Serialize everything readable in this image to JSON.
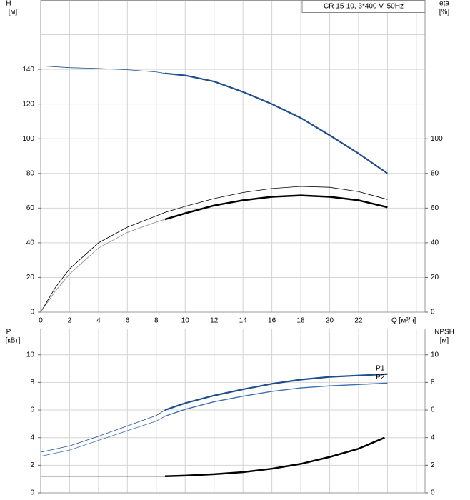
{
  "chart_data": [
    {
      "type": "line",
      "legend_box": "CR 15-10, 3*400 V, 50Hz",
      "y_label": [
        "H",
        "[м]"
      ],
      "y2_label": [
        "eta",
        "[%]"
      ],
      "x_label": "Q [м³/ч]",
      "xlim": [
        0,
        26.6
      ],
      "xticks": [
        0,
        2,
        4,
        6,
        8,
        10,
        12,
        14,
        16,
        18,
        20,
        22
      ],
      "xgrid_extra": [
        24,
        26
      ],
      "ylim": [
        0,
        180
      ],
      "yticks": [
        0,
        20,
        40,
        60,
        80,
        100,
        120,
        140
      ],
      "ygrid_extra": [
        160
      ],
      "y2lim": [
        0,
        180
      ],
      "y2ticks": [
        0,
        20,
        40,
        60,
        80,
        100
      ],
      "grid": true,
      "series": [
        {
          "color": "#1f4e8c",
          "line_width": 0.8,
          "x": [
            0,
            2,
            4,
            6,
            8,
            8.6
          ],
          "values": [
            142,
            141,
            140.5,
            139.8,
            138.5,
            137.7
          ]
        },
        {
          "color": "#1f4e8c",
          "line_width": 2.2,
          "x": [
            8.6,
            10,
            12,
            14,
            16,
            18,
            20,
            22,
            24
          ],
          "values": [
            137.7,
            136.5,
            133,
            127,
            120,
            112,
            102,
            91.5,
            80
          ]
        },
        {
          "color": "#000000",
          "line_width": 0.8,
          "axis": "y2",
          "x": [
            0,
            1,
            2,
            4,
            6,
            8,
            8.6,
            10,
            12,
            14,
            16,
            18,
            20,
            22,
            24
          ],
          "values": [
            0,
            14,
            25,
            40,
            49,
            55.5,
            57.5,
            61,
            65.5,
            69,
            71.3,
            72.5,
            72,
            69.5,
            65
          ]
        },
        {
          "color": "#888888",
          "line_width": 0.8,
          "axis": "y2",
          "x": [
            0,
            1,
            2,
            4,
            6,
            8,
            8.6
          ],
          "values": [
            0,
            12,
            22,
            37,
            46,
            52,
            53.5
          ]
        },
        {
          "color": "#000000",
          "line_width": 2.5,
          "axis": "y2",
          "x": [
            8.6,
            10,
            12,
            14,
            16,
            18,
            20,
            22,
            24
          ],
          "values": [
            53.5,
            57,
            61.5,
            64.5,
            66.5,
            67.3,
            66.5,
            64.5,
            60.5
          ]
        }
      ]
    },
    {
      "type": "line",
      "y_label": [
        "P",
        "[кВт]"
      ],
      "y2_label": [
        "NPSH",
        "[м]"
      ],
      "xlim": [
        0,
        26.6
      ],
      "xgrid": [
        0,
        2,
        4,
        6,
        8,
        10,
        12,
        14,
        16,
        18,
        20,
        22,
        24,
        26
      ],
      "ylim": [
        0,
        11.9
      ],
      "yticks": [
        0,
        2,
        4,
        6,
        8,
        10
      ],
      "y2lim": [
        0,
        11.9
      ],
      "y2ticks": [
        0,
        2,
        4,
        6,
        8,
        10
      ],
      "grid": true,
      "series": [
        {
          "color": "#1f4e8c",
          "line_width": 0.8,
          "x": [
            0,
            2,
            4,
            6,
            8,
            8.6
          ],
          "values": [
            2.95,
            3.4,
            4.1,
            4.85,
            5.6,
            6.0
          ]
        },
        {
          "name": "P1",
          "color": "#1f4e8c",
          "line_width": 2.2,
          "x": [
            8.6,
            10,
            12,
            14,
            16,
            18,
            20,
            22,
            24
          ],
          "values": [
            6.0,
            6.5,
            7.05,
            7.5,
            7.9,
            8.2,
            8.4,
            8.5,
            8.6
          ]
        },
        {
          "color": "#3a6fb0",
          "line_width": 0.8,
          "x": [
            0,
            2,
            4,
            6,
            8,
            8.6
          ],
          "values": [
            2.65,
            3.1,
            3.8,
            4.5,
            5.2,
            5.55
          ]
        },
        {
          "name": "P2",
          "color": "#3a6fb0",
          "line_width": 1.4,
          "x": [
            8.6,
            10,
            12,
            14,
            16,
            18,
            20,
            22,
            24
          ],
          "values": [
            5.55,
            6.05,
            6.6,
            7.0,
            7.35,
            7.6,
            7.75,
            7.85,
            7.95
          ]
        },
        {
          "color": "#000000",
          "line_width": 0.8,
          "axis": "y2",
          "x": [
            0,
            4,
            8.6
          ],
          "values": [
            1.2,
            1.2,
            1.2
          ]
        },
        {
          "color": "#000000",
          "line_width": 2.5,
          "axis": "y2",
          "x": [
            8.6,
            10,
            12,
            14,
            16,
            18,
            20,
            22,
            23.8
          ],
          "values": [
            1.2,
            1.25,
            1.35,
            1.5,
            1.75,
            2.1,
            2.6,
            3.2,
            4.0
          ]
        }
      ]
    }
  ]
}
